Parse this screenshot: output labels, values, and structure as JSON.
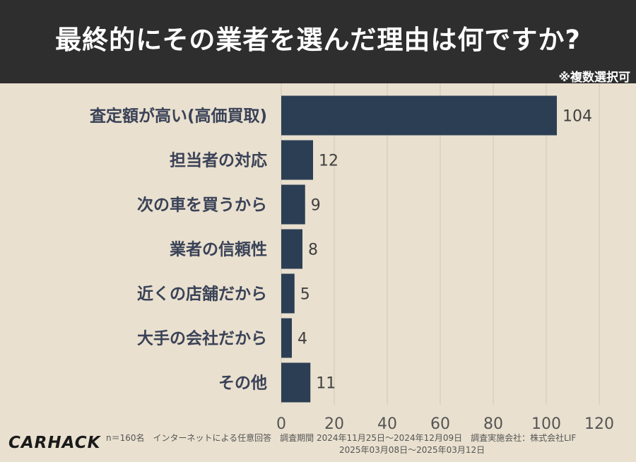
{
  "header": {
    "title": "最終的にその業者を選んだ理由は何ですか?",
    "note": "※複数選択可"
  },
  "chart_data": {
    "type": "bar",
    "orientation": "horizontal",
    "title": "最終的にその業者を選んだ理由は何ですか?",
    "categories": [
      "査定額が高い(高価買取)",
      "担当者の対応",
      "次の車を買うから",
      "業者の信頼性",
      "近くの店舗だから",
      "大手の会社だから",
      "その他"
    ],
    "values": [
      104,
      12,
      9,
      8,
      5,
      4,
      11
    ],
    "xlim": [
      0,
      120
    ],
    "xticks": [
      0,
      20,
      40,
      60,
      80,
      100,
      120
    ],
    "grid": true,
    "bar_color": "#2c3e54"
  },
  "footer": {
    "line1": "n＝160名　インターネットによる任意回答　調査期間 2024年11月25日～2024年12月09日　調査実施会社：株式会社LIF",
    "line2": "2025年03月08日～2025年03月12日"
  },
  "logo": {
    "text": "CARHACK"
  }
}
